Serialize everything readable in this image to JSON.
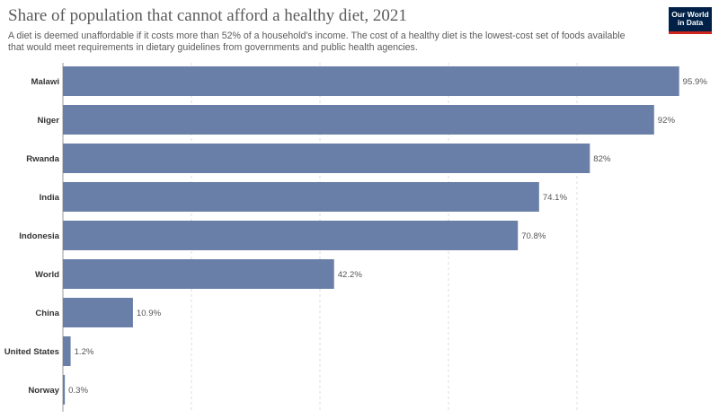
{
  "header": {
    "title": "Share of population that cannot afford a healthy diet, 2021",
    "subtitle": "A diet is deemed unaffordable if it costs more than 52% of a household's income. The cost of a healthy diet is the lowest-cost set of foods available that would meet requirements in dietary guidelines from governments and public health agencies.",
    "logo_line1": "Our World",
    "logo_line2": "in Data"
  },
  "colors": {
    "bar": "#6a7fa8",
    "grid": "#dddddd",
    "logo_bg": "#002147",
    "logo_accent": "#ce261e"
  },
  "chart_data": {
    "type": "bar",
    "orientation": "horizontal",
    "title": "Share of population that cannot afford a healthy diet, 2021",
    "categories": [
      "Malawi",
      "Niger",
      "Rwanda",
      "India",
      "Indonesia",
      "World",
      "China",
      "United States",
      "Norway"
    ],
    "values": [
      95.9,
      92,
      82,
      74.1,
      70.8,
      42.2,
      10.9,
      1.2,
      0.3
    ],
    "value_labels": [
      "95.9%",
      "92%",
      "82%",
      "74.1%",
      "70.8%",
      "42.2%",
      "10.9%",
      "1.2%",
      "0.3%"
    ],
    "xlim": [
      0,
      100
    ],
    "grid": true
  }
}
